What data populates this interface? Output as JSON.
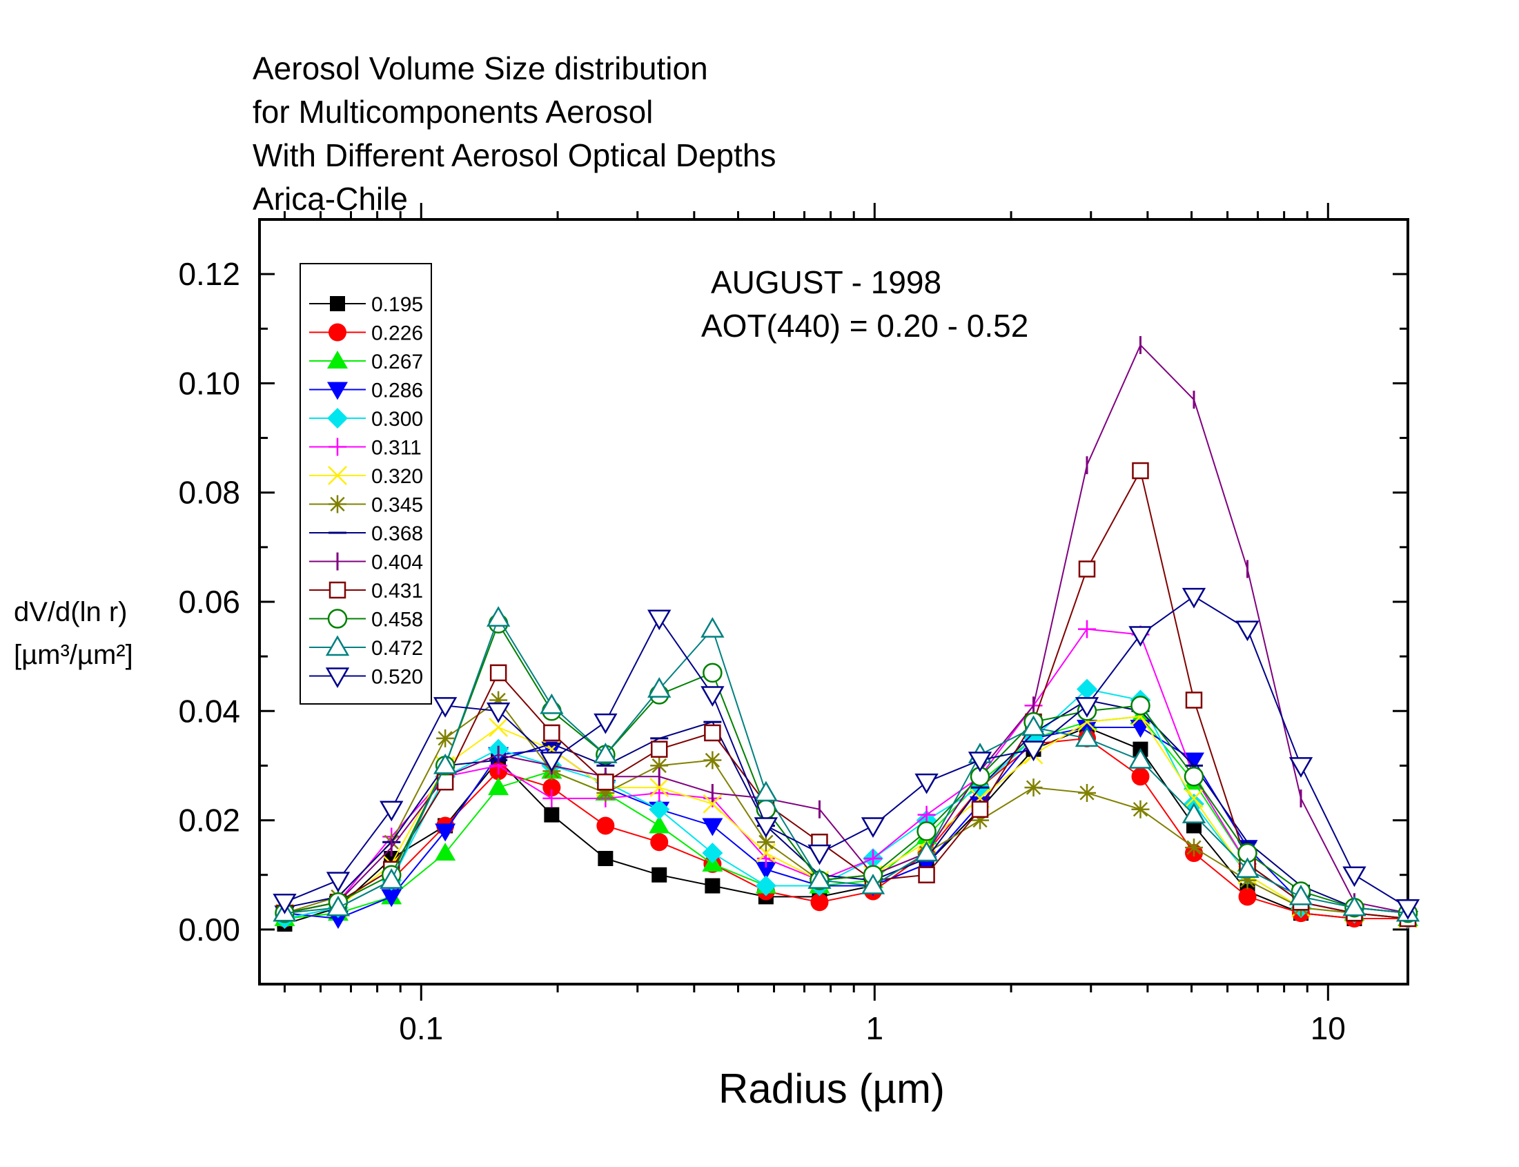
{
  "chart_data": {
    "type": "line",
    "title": [
      "Aerosol Volume Size distribution",
      "for Multicomponents Aerosol",
      "With Different Aerosol Optical Depths",
      "Arica-Chile"
    ],
    "annotations": [
      "AUGUST - 1998",
      "AOT(440) = 0.20 - 0.52"
    ],
    "xlabel": "Radius (µm)",
    "ylabel": [
      "dV/d(ln r)",
      "[µm³/µm²]"
    ],
    "xscale": "log",
    "xlim": [
      0.044,
      15.0
    ],
    "ylim": [
      -0.01,
      0.13
    ],
    "xticks": [
      0.1,
      1,
      10
    ],
    "xtick_labels": [
      "0.1",
      "1",
      "10"
    ],
    "yticks": [
      0.0,
      0.02,
      0.04,
      0.06,
      0.08,
      0.1,
      0.12
    ],
    "ytick_labels": [
      "0.00",
      "0.02",
      "0.04",
      "0.06",
      "0.08",
      "0.10",
      "0.12"
    ],
    "grid": false,
    "legend_position": "top-left",
    "x": [
      0.05,
      0.0656,
      0.086,
      0.113,
      0.148,
      0.194,
      0.255,
      0.335,
      0.439,
      0.576,
      0.756,
      0.992,
      1.302,
      1.708,
      2.241,
      2.94,
      3.857,
      5.061,
      6.641,
      8.713,
      11.43,
      15.0
    ],
    "series": [
      {
        "name": "0.195",
        "color": "#000000",
        "marker": "square-filled",
        "values": [
          0.001,
          0.004,
          0.013,
          0.019,
          0.031,
          0.021,
          0.013,
          0.01,
          0.008,
          0.006,
          0.006,
          0.008,
          0.012,
          0.022,
          0.033,
          0.037,
          0.033,
          0.019,
          0.007,
          0.003,
          0.002,
          0.002
        ]
      },
      {
        "name": "0.226",
        "color": "#ff0000",
        "marker": "circle-filled",
        "values": [
          0.002,
          0.004,
          0.009,
          0.019,
          0.029,
          0.026,
          0.019,
          0.016,
          0.012,
          0.007,
          0.005,
          0.007,
          0.014,
          0.026,
          0.034,
          0.035,
          0.028,
          0.014,
          0.006,
          0.003,
          0.002,
          0.002
        ]
      },
      {
        "name": "0.267",
        "color": "#00ee00",
        "marker": "triangle-up-filled",
        "values": [
          0.002,
          0.003,
          0.006,
          0.014,
          0.026,
          0.029,
          0.025,
          0.019,
          0.012,
          0.008,
          0.008,
          0.009,
          0.017,
          0.027,
          0.035,
          0.038,
          0.039,
          0.027,
          0.012,
          0.005,
          0.003,
          0.002
        ]
      },
      {
        "name": "0.286",
        "color": "#0000ff",
        "marker": "triangle-down-filled",
        "values": [
          0.003,
          0.002,
          0.006,
          0.018,
          0.032,
          0.033,
          0.026,
          0.022,
          0.019,
          0.011,
          0.008,
          0.008,
          0.012,
          0.023,
          0.035,
          0.037,
          0.037,
          0.031,
          0.015,
          0.005,
          0.003,
          0.002
        ]
      },
      {
        "name": "0.300",
        "color": "#00e5ee",
        "marker": "diamond-filled",
        "values": [
          0.002,
          0.004,
          0.009,
          0.028,
          0.033,
          0.03,
          0.027,
          0.022,
          0.014,
          0.008,
          0.008,
          0.013,
          0.02,
          0.026,
          0.035,
          0.044,
          0.042,
          0.023,
          0.01,
          0.004,
          0.003,
          0.002
        ]
      },
      {
        "name": "0.311",
        "color": "#ff00ff",
        "marker": "plus",
        "values": [
          0.003,
          0.005,
          0.017,
          0.028,
          0.03,
          0.024,
          0.024,
          0.025,
          0.024,
          0.013,
          0.009,
          0.013,
          0.021,
          0.028,
          0.041,
          0.055,
          0.054,
          0.028,
          0.012,
          0.005,
          0.003,
          0.002
        ]
      },
      {
        "name": "0.320",
        "color": "#ffee00",
        "marker": "x",
        "values": [
          0.003,
          0.004,
          0.012,
          0.03,
          0.037,
          0.033,
          0.026,
          0.026,
          0.023,
          0.014,
          0.009,
          0.01,
          0.016,
          0.024,
          0.032,
          0.038,
          0.039,
          0.024,
          0.01,
          0.004,
          0.003,
          0.002
        ]
      },
      {
        "name": "0.345",
        "color": "#808000",
        "marker": "asterisk",
        "values": [
          0.003,
          0.006,
          0.016,
          0.035,
          0.042,
          0.029,
          0.025,
          0.03,
          0.031,
          0.016,
          0.009,
          0.01,
          0.014,
          0.02,
          0.026,
          0.025,
          0.022,
          0.015,
          0.009,
          0.004,
          0.003,
          0.002
        ]
      },
      {
        "name": "0.368",
        "color": "#000080",
        "marker": "dash",
        "values": [
          0.004,
          0.006,
          0.016,
          0.03,
          0.031,
          0.034,
          0.03,
          0.035,
          0.038,
          0.019,
          0.01,
          0.009,
          0.013,
          0.026,
          0.036,
          0.042,
          0.04,
          0.03,
          0.016,
          0.008,
          0.004,
          0.003
        ]
      },
      {
        "name": "0.404",
        "color": "#800080",
        "marker": "vbar",
        "values": [
          0.003,
          0.005,
          0.015,
          0.028,
          0.032,
          0.03,
          0.028,
          0.028,
          0.025,
          0.024,
          0.022,
          0.01,
          0.014,
          0.029,
          0.041,
          0.085,
          0.107,
          0.097,
          0.066,
          0.024,
          0.005,
          0.003
        ]
      },
      {
        "name": "0.431",
        "color": "#800000",
        "marker": "square-open",
        "values": [
          0.003,
          0.005,
          0.011,
          0.027,
          0.047,
          0.036,
          0.027,
          0.033,
          0.036,
          0.023,
          0.016,
          0.009,
          0.01,
          0.022,
          0.038,
          0.066,
          0.084,
          0.042,
          0.012,
          0.005,
          0.003,
          0.002
        ]
      },
      {
        "name": "0.458",
        "color": "#008000",
        "marker": "circle-open",
        "values": [
          0.003,
          0.005,
          0.01,
          0.03,
          0.056,
          0.04,
          0.032,
          0.043,
          0.047,
          0.022,
          0.009,
          0.01,
          0.018,
          0.028,
          0.038,
          0.04,
          0.041,
          0.028,
          0.014,
          0.007,
          0.004,
          0.003
        ]
      },
      {
        "name": "0.472",
        "color": "#008080",
        "marker": "triangle-up-open",
        "values": [
          0.003,
          0.004,
          0.009,
          0.03,
          0.057,
          0.041,
          0.032,
          0.044,
          0.055,
          0.025,
          0.009,
          0.008,
          0.014,
          0.032,
          0.037,
          0.035,
          0.031,
          0.021,
          0.011,
          0.006,
          0.004,
          0.003
        ]
      },
      {
        "name": "0.520",
        "color": "#00008b",
        "marker": "triangle-down-open",
        "values": [
          0.005,
          0.009,
          0.022,
          0.041,
          0.04,
          0.031,
          0.038,
          0.057,
          0.043,
          0.019,
          0.014,
          0.019,
          0.027,
          0.031,
          0.033,
          0.041,
          0.054,
          0.061,
          0.055,
          0.03,
          0.01,
          0.004
        ]
      }
    ]
  }
}
